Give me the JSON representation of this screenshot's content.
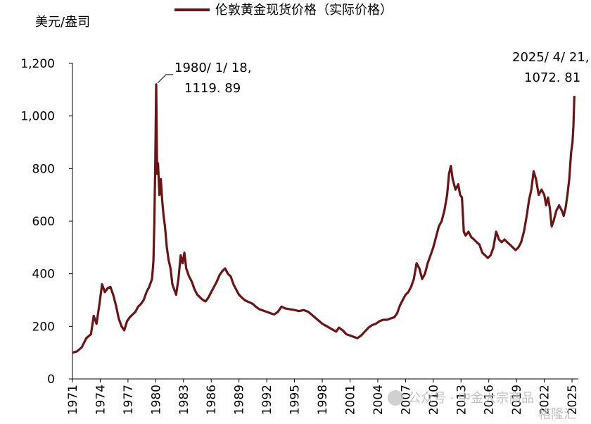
{
  "chart_data": {
    "type": "line",
    "ylabel": "美元/盎司",
    "ylim": [
      0,
      1200
    ],
    "yticks": [
      "0",
      "200",
      "400",
      "600",
      "800",
      "1,000",
      "1,200"
    ],
    "ytick_values": [
      0,
      200,
      400,
      600,
      800,
      1000,
      1200
    ],
    "xlim": [
      1971,
      2025.3
    ],
    "xtick_labels": [
      "1971",
      "1974",
      "1977",
      "1980",
      "1983",
      "1986",
      "1989",
      "1992",
      "1995",
      "1998",
      "2001",
      "2004",
      "2007",
      "2010",
      "2013",
      "2016",
      "2019",
      "2022",
      "2025"
    ],
    "grid": false,
    "legend_position": "top",
    "series": [
      {
        "name": "伦敦黄金现货价格（实际价格）",
        "color": "#6b1414",
        "x": [
          1971.0,
          1971.5,
          1972.0,
          1972.5,
          1973.0,
          1973.3,
          1973.6,
          1973.9,
          1974.2,
          1974.5,
          1974.8,
          1975.1,
          1975.4,
          1975.7,
          1976.0,
          1976.3,
          1976.6,
          1976.9,
          1977.2,
          1977.5,
          1977.8,
          1978.1,
          1978.4,
          1978.7,
          1979.0,
          1979.3,
          1979.6,
          1979.75,
          1979.85,
          1979.95,
          1980.05,
          1980.15,
          1980.25,
          1980.4,
          1980.55,
          1980.7,
          1980.85,
          1981.0,
          1981.2,
          1981.4,
          1981.6,
          1981.8,
          1982.0,
          1982.2,
          1982.45,
          1982.7,
          1982.9,
          1983.1,
          1983.3,
          1983.6,
          1983.9,
          1984.2,
          1984.5,
          1984.8,
          1985.1,
          1985.4,
          1985.7,
          1986.0,
          1986.3,
          1986.6,
          1986.9,
          1987.2,
          1987.5,
          1987.8,
          1988.1,
          1988.4,
          1988.7,
          1989.0,
          1989.3,
          1989.6,
          1989.9,
          1990.2,
          1990.5,
          1990.8,
          1991.2,
          1991.6,
          1992.0,
          1992.4,
          1992.8,
          1993.2,
          1993.6,
          1994.0,
          1994.5,
          1995.0,
          1995.5,
          1996.0,
          1996.5,
          1997.0,
          1997.5,
          1998.0,
          1998.5,
          1999.0,
          1999.5,
          1999.8,
          2000.2,
          2000.6,
          2001.0,
          2001.4,
          2001.8,
          2002.2,
          2002.6,
          2003.0,
          2003.4,
          2003.8,
          2004.2,
          2004.6,
          2005.0,
          2005.4,
          2005.8,
          2006.1,
          2006.4,
          2006.7,
          2007.0,
          2007.3,
          2007.6,
          2007.9,
          2008.2,
          2008.5,
          2008.8,
          2009.1,
          2009.4,
          2009.7,
          2010.0,
          2010.3,
          2010.6,
          2010.9,
          2011.2,
          2011.5,
          2011.7,
          2011.9,
          2012.1,
          2012.4,
          2012.7,
          2012.9,
          2013.1,
          2013.3,
          2013.5,
          2013.8,
          2014.1,
          2014.4,
          2014.7,
          2015.0,
          2015.3,
          2015.6,
          2015.9,
          2016.2,
          2016.5,
          2016.8,
          2017.1,
          2017.4,
          2017.7,
          2018.0,
          2018.3,
          2018.6,
          2018.9,
          2019.2,
          2019.5,
          2019.8,
          2020.1,
          2020.35,
          2020.6,
          2020.85,
          2021.1,
          2021.4,
          2021.7,
          2022.0,
          2022.2,
          2022.4,
          2022.6,
          2022.8,
          2023.0,
          2023.3,
          2023.6,
          2023.9,
          2024.1,
          2024.3,
          2024.5,
          2024.7,
          2024.9,
          2025.05,
          2025.15,
          2025.25,
          2025.3
        ],
        "values": [
          100,
          105,
          120,
          155,
          170,
          240,
          210,
          280,
          360,
          330,
          345,
          350,
          320,
          280,
          230,
          200,
          185,
          220,
          235,
          245,
          255,
          275,
          285,
          300,
          330,
          350,
          380,
          450,
          600,
          820,
          1119.89,
          780,
          820,
          700,
          760,
          680,
          620,
          580,
          500,
          450,
          420,
          360,
          340,
          320,
          380,
          470,
          440,
          480,
          420,
          390,
          370,
          340,
          320,
          310,
          300,
          295,
          310,
          330,
          350,
          370,
          395,
          410,
          420,
          400,
          390,
          360,
          340,
          320,
          310,
          300,
          295,
          290,
          285,
          275,
          265,
          260,
          255,
          250,
          245,
          255,
          275,
          268,
          265,
          262,
          258,
          262,
          255,
          240,
          225,
          210,
          200,
          190,
          180,
          195,
          185,
          170,
          165,
          160,
          155,
          165,
          180,
          195,
          205,
          210,
          220,
          225,
          225,
          230,
          235,
          250,
          280,
          300,
          320,
          330,
          350,
          380,
          440,
          420,
          380,
          400,
          440,
          470,
          500,
          540,
          580,
          600,
          640,
          700,
          780,
          810,
          760,
          720,
          740,
          700,
          690,
          560,
          545,
          560,
          540,
          530,
          520,
          510,
          480,
          470,
          460,
          470,
          500,
          560,
          530,
          520,
          530,
          520,
          510,
          500,
          490,
          500,
          520,
          560,
          620,
          680,
          720,
          790,
          760,
          700,
          720,
          700,
          660,
          690,
          650,
          580,
          600,
          640,
          660,
          640,
          620,
          650,
          700,
          760,
          860,
          900,
          960,
          1072.81,
          1070
        ],
        "annotations": [
          {
            "label_line1": "1980/ 1/ 18,",
            "label_line2": "1119. 89",
            "x": 1980.05,
            "y": 1119.89
          },
          {
            "label_line1": "2025/ 4/ 21,",
            "label_line2": "1072. 81",
            "x": 2025.25,
            "y": 1072.81
          }
        ]
      }
    ]
  },
  "watermark": {
    "text1": "公众号 · 中金大宗商品",
    "text2": "格隆汇"
  }
}
